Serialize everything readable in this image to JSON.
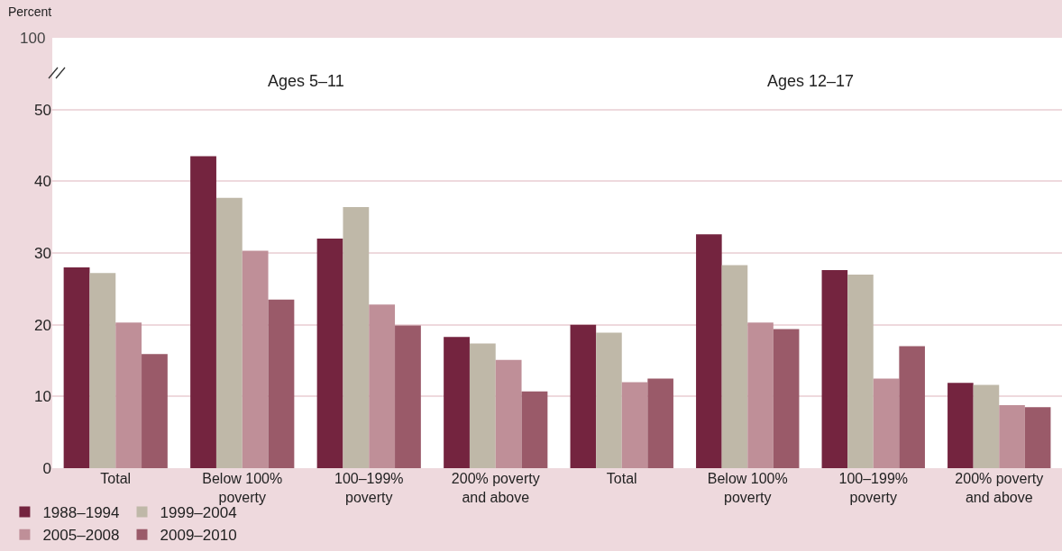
{
  "chart_data": [
    {
      "type": "bar",
      "title": "Ages 5–11",
      "ylabel": "Percent",
      "annotations": [
        "100"
      ],
      "categories": [
        "Total",
        "Below 100%\npoverty",
        "100–199%\npoverty",
        "200% poverty\nand above"
      ],
      "series": [
        {
          "name": "1988–1994",
          "color": "#74243f",
          "values": [
            28,
            43.5,
            32,
            18.3
          ]
        },
        {
          "name": "1999–2004",
          "color": "#bfb8a8",
          "values": [
            27.2,
            37.7,
            36.4,
            17.4
          ]
        },
        {
          "name": "2005–2008",
          "color": "#bf8f98",
          "values": [
            20.3,
            30.3,
            22.8,
            15.1
          ]
        },
        {
          "name": "2009–2010",
          "color": "#9a5a69",
          "values": [
            15.9,
            23.5,
            19.9,
            10.7
          ]
        }
      ],
      "ylim": [
        0,
        60
      ],
      "yticks": [
        0,
        10,
        20,
        30,
        40,
        50
      ],
      "grid": "y",
      "legend": "bottom"
    },
    {
      "type": "bar",
      "title": "Ages 12–17",
      "categories": [
        "Total",
        "Below 100%\npoverty",
        "100–199%\npoverty",
        "200% poverty\nand above"
      ],
      "series": [
        {
          "color": "#74243f",
          "values": [
            20,
            32.6,
            27.6,
            11.9
          ]
        },
        {
          "color": "#bfb8a8",
          "values": [
            18.9,
            28.3,
            27,
            11.6
          ]
        },
        {
          "color": "#bf8f98",
          "values": [
            12,
            20.3,
            12.5,
            8.8
          ]
        },
        {
          "color": "#9a5a69",
          "values": [
            12.5,
            19.4,
            17,
            8.5
          ]
        }
      ],
      "ylim": [
        0,
        60
      ],
      "yticks": [
        0,
        10,
        20,
        30,
        40,
        50
      ],
      "grid": "y",
      "tick_labels": "x",
      "legend": false
    }
  ]
}
